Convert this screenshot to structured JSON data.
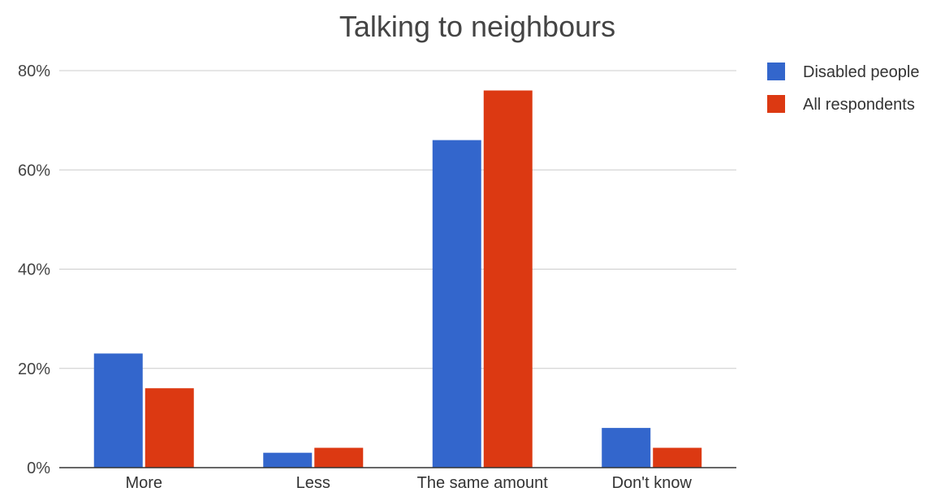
{
  "chart_data": {
    "type": "bar",
    "title": "Talking to neighbours",
    "xlabel": "",
    "ylabel": "",
    "categories": [
      "More",
      "Less",
      "The same amount",
      "Don't know"
    ],
    "series": [
      {
        "name": "Disabled people",
        "color": "#3366cc",
        "values": [
          23,
          3,
          66,
          8
        ]
      },
      {
        "name": "All respondents",
        "color": "#dc3912",
        "values": [
          16,
          4,
          76,
          4
        ]
      }
    ],
    "ylim": [
      0,
      80
    ],
    "yticks": [
      0,
      20,
      40,
      60,
      80
    ],
    "ytick_labels": [
      "0%",
      "20%",
      "40%",
      "60%",
      "80%"
    ],
    "grid": true,
    "legend_position": "right"
  }
}
